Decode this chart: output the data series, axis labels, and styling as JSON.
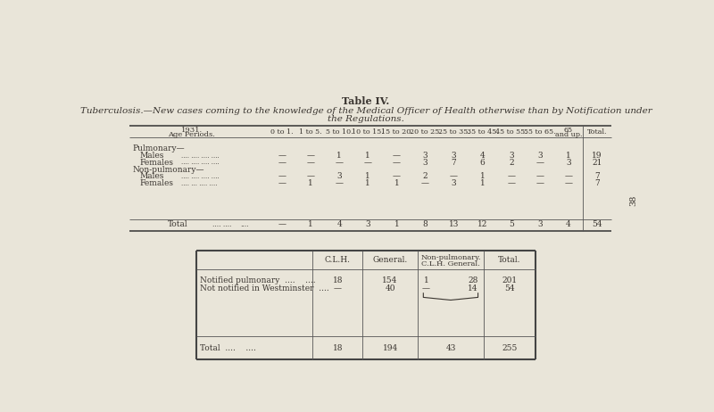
{
  "bg_color": "#e9e5d9",
  "title1": "Table IV.",
  "title2": "Tuberculosis.—New cases coming to the knowledge of the Medical Officer of Health otherwise than by Notification under",
  "title3": "the Regulations.",
  "page_num": "38",
  "text_color": "#3a3530",
  "top_table": {
    "age_cols": [
      "0 to 1.",
      "1 to 5.",
      "5 to 10.",
      "10 to 15.",
      "15 to 20.",
      "20 to 25.",
      "25 to 35.",
      "35 to 45.",
      "45 to 55.",
      "55 to 65.",
      "65\nand up.",
      "Total."
    ],
    "rows": [
      {
        "label": "Pulmonary—",
        "type": "header"
      },
      {
        "label": "Males",
        "dots": ".... .... .... ....",
        "values": [
          "—",
          "—",
          "1",
          "1",
          "—",
          "3",
          "3",
          "4",
          "3",
          "3",
          "1",
          "19"
        ]
      },
      {
        "label": "Females",
        "dots": ".... .... .... ....",
        "values": [
          "—",
          "—",
          "—",
          "—",
          "—",
          "3",
          "7",
          "6",
          "2",
          "—",
          "3",
          "21"
        ]
      },
      {
        "label": "Non-pulmonary—",
        "type": "header"
      },
      {
        "label": "Males",
        "dots": ".... .... .... ....",
        "values": [
          "—",
          "—",
          "3",
          "1",
          "—",
          "2",
          "—",
          "1",
          "—",
          "—",
          "—",
          "7"
        ]
      },
      {
        "label": "Females",
        "dots": ".... ... .... ....",
        "values": [
          "—",
          "1",
          "—",
          "1",
          "1",
          "—",
          "3",
          "1",
          "—",
          "—",
          "—",
          "7"
        ]
      },
      {
        "label": "Total",
        "type": "total",
        "dots": ".... ....",
        "values": [
          "—",
          "1",
          "4",
          "3",
          "1",
          "8",
          "13",
          "12",
          "5",
          "3",
          "4",
          "54"
        ]
      }
    ]
  },
  "bottom_table": {
    "col_headers": [
      "",
      "C.L.H.",
      "General.",
      "Non-pulmonary.\nC.L.H. General.",
      "Total."
    ],
    "data_rows": [
      {
        "label": "Notified pulmonary  ....    ....",
        "clh": "18",
        "gen": "154",
        "np1": "1",
        "np2": "28",
        "tot": "201"
      },
      {
        "label": "Not notified in Westminster  ....",
        "clh": "—",
        "gen": "40",
        "np1": "—",
        "np2": "14",
        "tot": "54"
      }
    ],
    "total_row": {
      "label": "Total  ....    ....",
      "clh": "18",
      "gen": "194",
      "np": "43",
      "tot": "255"
    }
  }
}
